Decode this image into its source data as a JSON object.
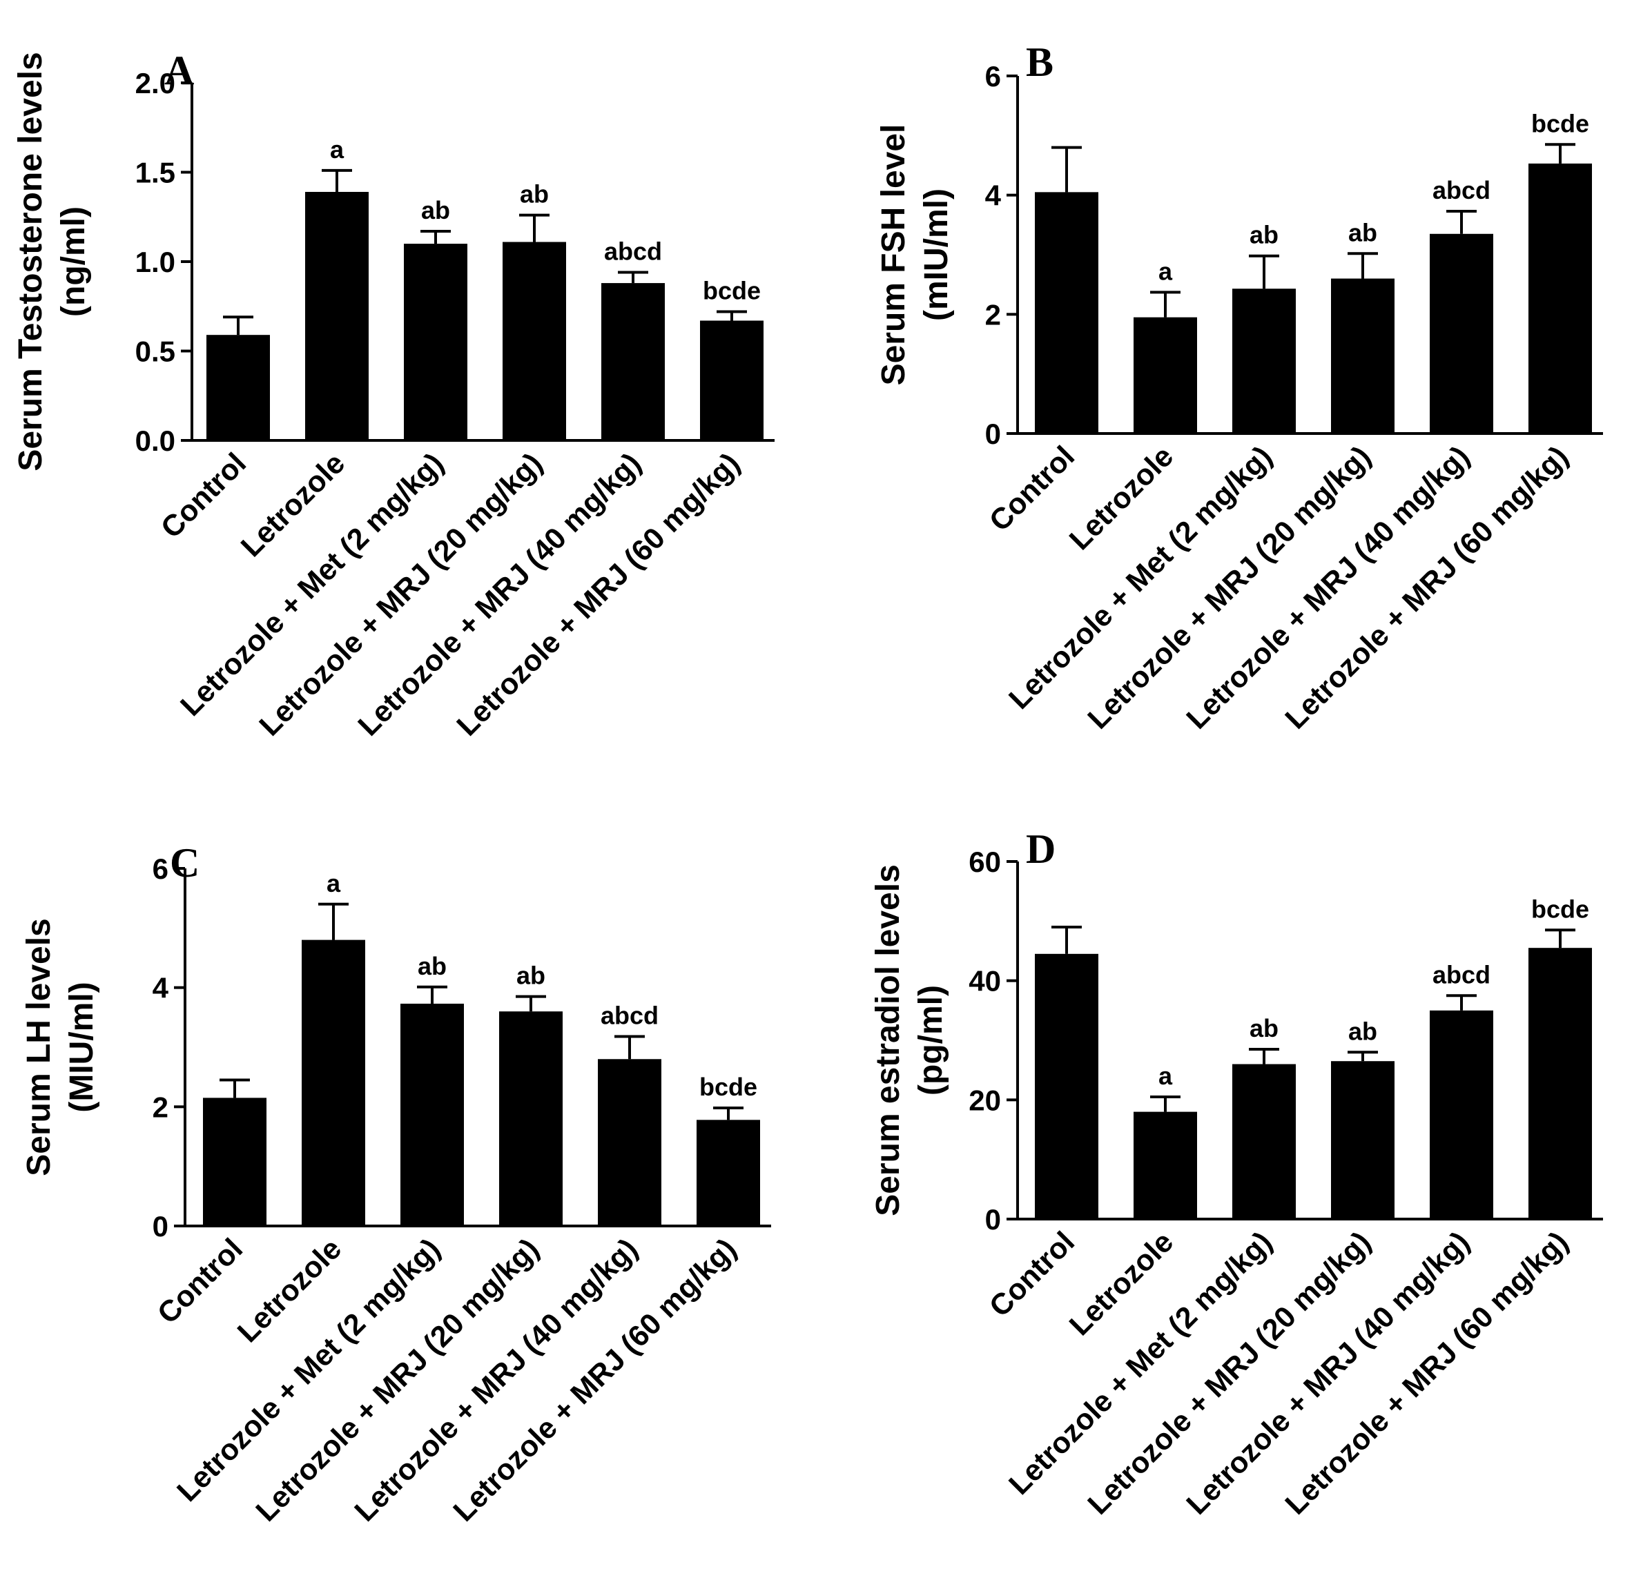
{
  "chart_data": [
    {
      "panel": "A",
      "type": "bar",
      "ylabel": "Serum Testosterone levels",
      "yunit": "(ng/ml)",
      "categories": [
        "Control",
        "Letrozole",
        "Letrozole + Met (2 mg/kg)",
        "Letrozole + MRJ (20 mg/kg)",
        "Letrozole + MRJ (40 mg/kg)",
        "Letrozole + MRJ (60 mg/kg)"
      ],
      "values": [
        0.59,
        1.39,
        1.1,
        1.11,
        0.88,
        0.67
      ],
      "errors": [
        0.1,
        0.12,
        0.07,
        0.15,
        0.06,
        0.05
      ],
      "significance": [
        "",
        "a",
        "ab",
        "ab",
        "abcd",
        "bcde"
      ],
      "ylim": [
        0,
        2.0
      ],
      "yticks": [
        0,
        0.5,
        1.0,
        1.5,
        2.0
      ],
      "ytick_labels": [
        "0.0",
        "0.5",
        "1.0",
        "1.5",
        "2.0"
      ]
    },
    {
      "panel": "B",
      "type": "bar",
      "ylabel": "Serum FSH level",
      "yunit": "(mIU/ml)",
      "categories": [
        "Control",
        "Letrozole",
        "Letrozole + Met (2 mg/kg)",
        "Letrozole + MRJ (20 mg/kg)",
        "Letrozole + MRJ (40 mg/kg)",
        "Letrozole + MRJ (60 mg/kg)"
      ],
      "values": [
        4.05,
        1.95,
        2.43,
        2.6,
        3.35,
        4.53
      ],
      "errors": [
        0.75,
        0.42,
        0.55,
        0.42,
        0.38,
        0.32
      ],
      "significance": [
        "",
        "a",
        "ab",
        "ab",
        "abcd",
        "bcde"
      ],
      "ylim": [
        0,
        6
      ],
      "yticks": [
        0,
        2,
        4,
        6
      ],
      "ytick_labels": [
        "0",
        "2",
        "4",
        "6"
      ]
    },
    {
      "panel": "C",
      "type": "bar",
      "ylabel": "Serum LH levels",
      "yunit": "(MIU/ml)",
      "categories": [
        "Control",
        "Letrozole",
        "Letrozole + Met (2 mg/kg)",
        "Letrozole + MRJ (20 mg/kg)",
        "Letrozole + MRJ (40 mg/kg)",
        "Letrozole + MRJ (60 mg/kg)"
      ],
      "values": [
        2.15,
        4.8,
        3.73,
        3.6,
        2.8,
        1.78
      ],
      "errors": [
        0.3,
        0.6,
        0.28,
        0.25,
        0.38,
        0.2
      ],
      "significance": [
        "",
        "a",
        "ab",
        "ab",
        "abcd",
        "bcde"
      ],
      "ylim": [
        0,
        6
      ],
      "yticks": [
        0,
        2,
        4,
        6
      ],
      "ytick_labels": [
        "0",
        "2",
        "4",
        "6"
      ]
    },
    {
      "panel": "D",
      "type": "bar",
      "ylabel": "Serum estradiol levels",
      "yunit": "(pg/ml)",
      "categories": [
        "Control",
        "Letrozole",
        "Letrozole + Met (2 mg/kg)",
        "Letrozole + MRJ (20 mg/kg)",
        "Letrozole + MRJ (40 mg/kg)",
        "Letrozole + MRJ (60 mg/kg)"
      ],
      "values": [
        44.5,
        18.0,
        26.0,
        26.5,
        35.0,
        45.5
      ],
      "errors": [
        4.5,
        2.5,
        2.5,
        1.5,
        2.5,
        3.0
      ],
      "significance": [
        "",
        "a",
        "ab",
        "ab",
        "abcd",
        "bcde"
      ],
      "ylim": [
        0,
        60
      ],
      "yticks": [
        0,
        20,
        40,
        60
      ],
      "ytick_labels": [
        "0",
        "20",
        "40",
        "60"
      ]
    }
  ]
}
